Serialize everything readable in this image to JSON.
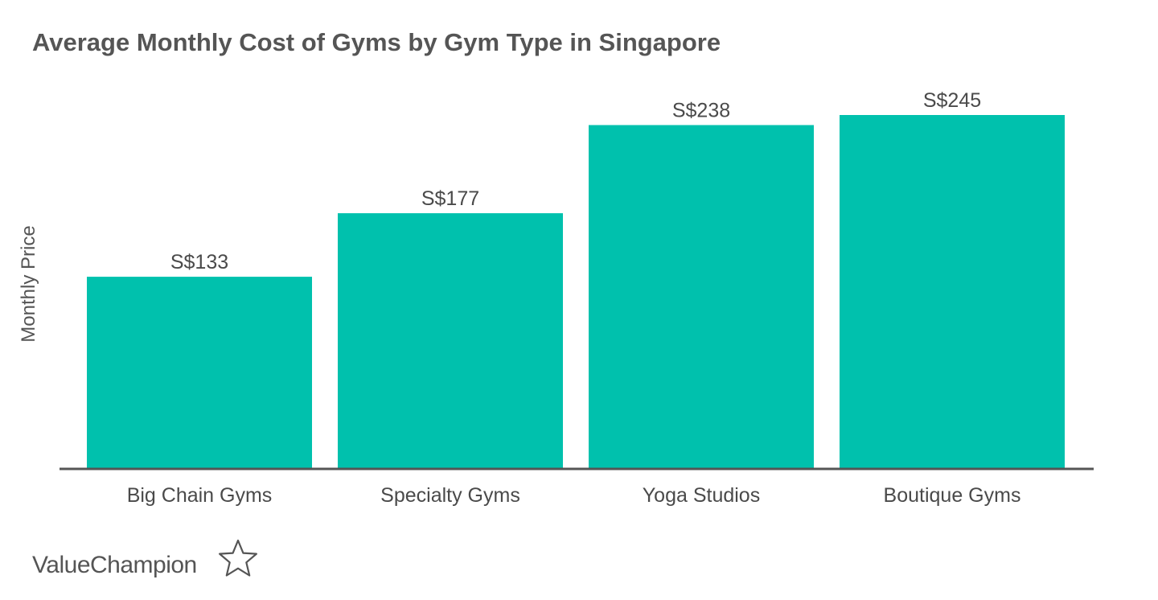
{
  "chart_data": {
    "type": "bar",
    "title": "Average Monthly Cost of Gyms by Gym Type in Singapore",
    "xlabel": "",
    "ylabel": "Monthly Price",
    "categories": [
      "Big Chain Gyms",
      "Specialty Gyms",
      "Yoga Studios",
      "Boutique Gyms"
    ],
    "values": [
      133,
      177,
      238,
      245
    ],
    "value_labels": [
      "S$133",
      "S$177",
      "S$238",
      "S$245"
    ],
    "ylim": [
      0,
      255
    ],
    "grid": false,
    "legend": "none",
    "bar_color": "#00c1ad",
    "axis_color": "#555555"
  },
  "brand": {
    "name": "ValueChampion",
    "logo_icon": "star-outline-icon"
  }
}
